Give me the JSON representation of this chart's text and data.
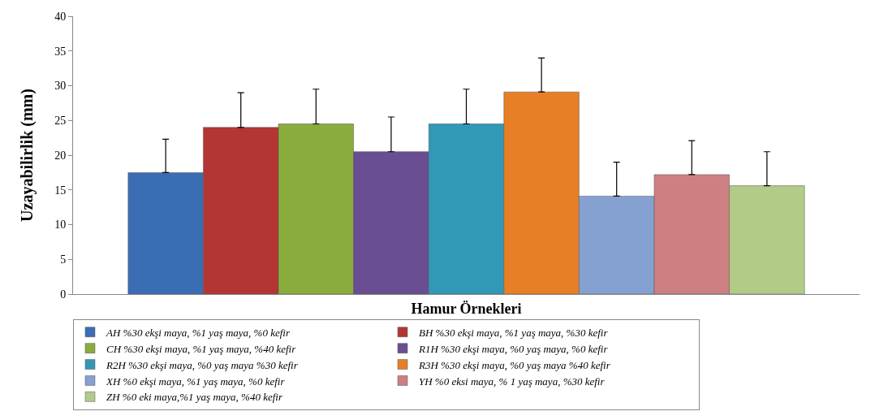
{
  "chart_data": {
    "type": "bar",
    "xlabel": "Hamur Örnekleri",
    "ylabel": "Uzayabilirlik (mm)",
    "categories": [
      null
    ],
    "series": [
      {
        "name": "AH %30 ekşi maya, %1 yaş maya, %0 kefir",
        "color": "#3a6db4",
        "values": [
          17.5
        ],
        "errors": [
          [
            17.5,
            22.3
          ]
        ]
      },
      {
        "name": "BH %30 ekşi maya, %1 yaş maya, %30 kefir",
        "color": "#b43634",
        "values": [
          24.0
        ],
        "errors": [
          [
            24.0,
            29.0
          ]
        ]
      },
      {
        "name": "CH %30 ekşi maya, %1 yaş maya, %40 kefir",
        "color": "#8aac3c",
        "values": [
          24.5
        ],
        "errors": [
          [
            24.5,
            29.5
          ]
        ]
      },
      {
        "name": "R1H %30 ekşi maya, %0 yaş maya, %0 kefir",
        "color": "#6a4e94",
        "values": [
          20.5
        ],
        "errors": [
          [
            20.5,
            25.5
          ]
        ]
      },
      {
        "name": "R2H %30 ekşi maya, %0 yaş maya %30 kefir",
        "color": "#3198b6",
        "values": [
          24.5
        ],
        "errors": [
          [
            24.5,
            29.5
          ]
        ]
      },
      {
        "name": "R3H %30 ekşi maya, %0 yaş maya %40 kefir",
        "color": "#e67f26",
        "values": [
          29.1
        ],
        "errors": [
          [
            29.1,
            34.0
          ]
        ]
      },
      {
        "name": "XH %0 ekşi maya, %1 yaş maya, %0 kefir",
        "color": "#85a1d2",
        "values": [
          14.1
        ],
        "errors": [
          [
            14.1,
            19.0
          ]
        ]
      },
      {
        "name": "YH %0 eksi maya, % 1 yaş maya, %30 kefir",
        "color": "#cd8082",
        "values": [
          17.2
        ],
        "errors": [
          [
            17.2,
            22.1
          ]
        ]
      },
      {
        "name": "ZH %0 eki maya,%1 yaş maya, %40 kefir",
        "color": "#b2cc88",
        "values": [
          15.6
        ],
        "errors": [
          [
            15.6,
            20.5
          ]
        ]
      }
    ],
    "ylim": [
      0,
      40
    ],
    "yticks": [
      0,
      5,
      10,
      15,
      20,
      25,
      30,
      35,
      40
    ],
    "grid": false,
    "legend": "bottom"
  }
}
